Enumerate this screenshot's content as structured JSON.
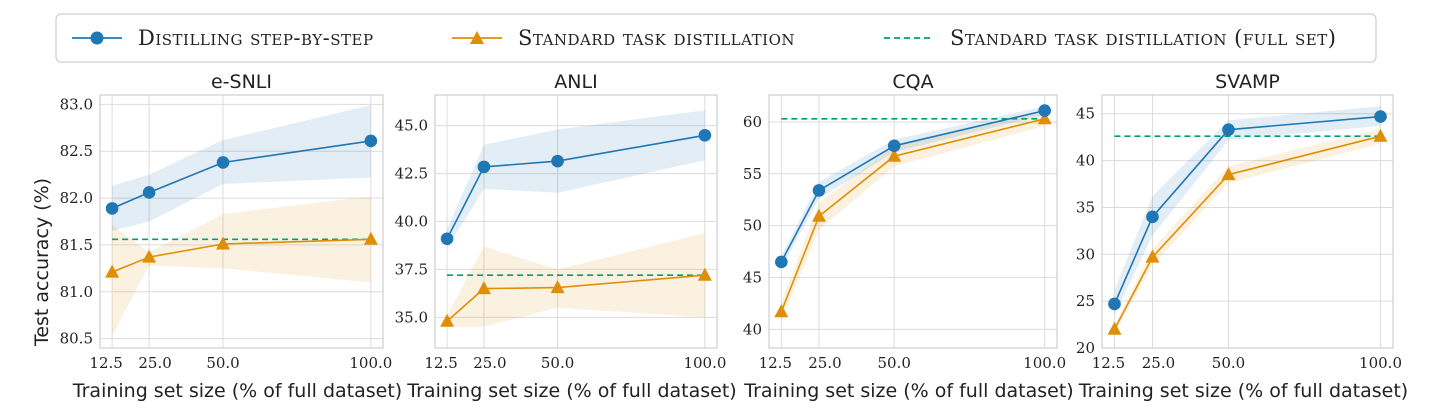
{
  "legend": {
    "items": [
      {
        "label": "Distilling step-by-step",
        "color": "#1f77b4",
        "marker": "circle",
        "style": "solid"
      },
      {
        "label": "Standard task distillation",
        "color": "#de8f05",
        "marker": "triangle",
        "style": "solid"
      },
      {
        "label": "Standard task distillation (full set)",
        "color": "#029e73",
        "marker": "none",
        "style": "dashed"
      }
    ]
  },
  "ylabel": "Test accuracy (%)",
  "xlabel": "Training set size (% of full dataset)",
  "chart_data": [
    {
      "type": "line",
      "title": "e-SNLI",
      "x": [
        12.5,
        25.0,
        50.0,
        100.0
      ],
      "xticks": [
        "12.5",
        "25.0",
        "50.0",
        "100.0"
      ],
      "ylim": [
        80.4,
        83.1
      ],
      "yticks": [
        80.5,
        81.0,
        81.5,
        82.0,
        82.5,
        83.0
      ],
      "ytick_labels": [
        "80.5",
        "81.0",
        "81.5",
        "82.0",
        "82.5",
        "83.0"
      ],
      "series": [
        {
          "name": "Distilling step-by-step",
          "values": [
            81.89,
            82.06,
            82.38,
            82.61
          ],
          "band_low": [
            81.65,
            81.75,
            82.15,
            82.22
          ],
          "band_high": [
            82.13,
            82.25,
            82.62,
            82.99
          ]
        },
        {
          "name": "Standard task distillation",
          "values": [
            81.21,
            81.37,
            81.51,
            81.56
          ],
          "band_low": [
            80.53,
            81.28,
            81.25,
            81.1
          ],
          "band_high": [
            81.71,
            81.42,
            81.83,
            82.02
          ]
        }
      ],
      "reference": {
        "name": "Standard task distillation (full set)",
        "value": 81.56
      }
    },
    {
      "type": "line",
      "title": "ANLI",
      "x": [
        12.5,
        25.0,
        50.0,
        100.0
      ],
      "xticks": [
        "12.5",
        "25.0",
        "50.0",
        "100.0"
      ],
      "ylim": [
        33.4,
        46.6
      ],
      "yticks": [
        35.0,
        37.5,
        40.0,
        42.5,
        45.0
      ],
      "ytick_labels": [
        "35.0",
        "37.5",
        "40.0",
        "42.5",
        "45.0"
      ],
      "series": [
        {
          "name": "Distilling step-by-step",
          "values": [
            39.1,
            42.85,
            43.15,
            44.5
          ],
          "band_low": [
            38.6,
            41.7,
            41.5,
            43.2
          ],
          "band_high": [
            39.6,
            44.0,
            44.8,
            45.8
          ]
        },
        {
          "name": "Standard task distillation",
          "values": [
            34.8,
            36.5,
            36.55,
            37.2
          ],
          "band_low": [
            34.5,
            34.5,
            35.5,
            35.0
          ],
          "band_high": [
            35.1,
            38.7,
            37.5,
            39.4
          ]
        }
      ],
      "reference": {
        "name": "Standard task distillation (full set)",
        "value": 37.2
      }
    },
    {
      "type": "line",
      "title": "CQA",
      "x": [
        12.5,
        25.0,
        50.0,
        100.0
      ],
      "xticks": [
        "12.5",
        "25.0",
        "50.0",
        "100.0"
      ],
      "ylim": [
        38.2,
        62.6
      ],
      "yticks": [
        40,
        45,
        50,
        55,
        60
      ],
      "ytick_labels": [
        "40",
        "45",
        "50",
        "55",
        "60"
      ],
      "series": [
        {
          "name": "Distilling step-by-step",
          "values": [
            46.5,
            53.4,
            57.7,
            61.1
          ],
          "band_low": [
            45.9,
            52.6,
            57.1,
            60.7
          ],
          "band_high": [
            47.1,
            54.2,
            58.3,
            61.5
          ]
        },
        {
          "name": "Standard task distillation",
          "values": [
            41.7,
            50.9,
            56.7,
            60.3
          ],
          "band_low": [
            40.8,
            49.6,
            55.7,
            59.6
          ],
          "band_high": [
            42.6,
            52.2,
            57.7,
            61.0
          ]
        }
      ],
      "reference": {
        "name": "Standard task distillation (full set)",
        "value": 60.3
      }
    },
    {
      "type": "line",
      "title": "SVAMP",
      "x": [
        12.5,
        25.0,
        50.0,
        100.0
      ],
      "xticks": [
        "12.5",
        "25.0",
        "50.0",
        "100.0"
      ],
      "ylim": [
        20.0,
        47.0
      ],
      "yticks": [
        20,
        25,
        30,
        35,
        40,
        45
      ],
      "ytick_labels": [
        "20",
        "25",
        "30",
        "35",
        "40",
        "45"
      ],
      "series": [
        {
          "name": "Distilling step-by-step",
          "values": [
            24.7,
            34.0,
            43.3,
            44.7
          ],
          "band_low": [
            23.5,
            32.0,
            42.2,
            43.7
          ],
          "band_high": [
            26.2,
            36.2,
            44.3,
            45.8
          ]
        },
        {
          "name": "Standard task distillation",
          "values": [
            22.0,
            29.7,
            38.5,
            42.6
          ],
          "band_low": [
            21.5,
            28.8,
            37.6,
            41.8
          ],
          "band_high": [
            22.5,
            30.6,
            39.4,
            43.4
          ]
        }
      ],
      "reference": {
        "name": "Standard task distillation (full set)",
        "value": 42.6
      }
    }
  ]
}
